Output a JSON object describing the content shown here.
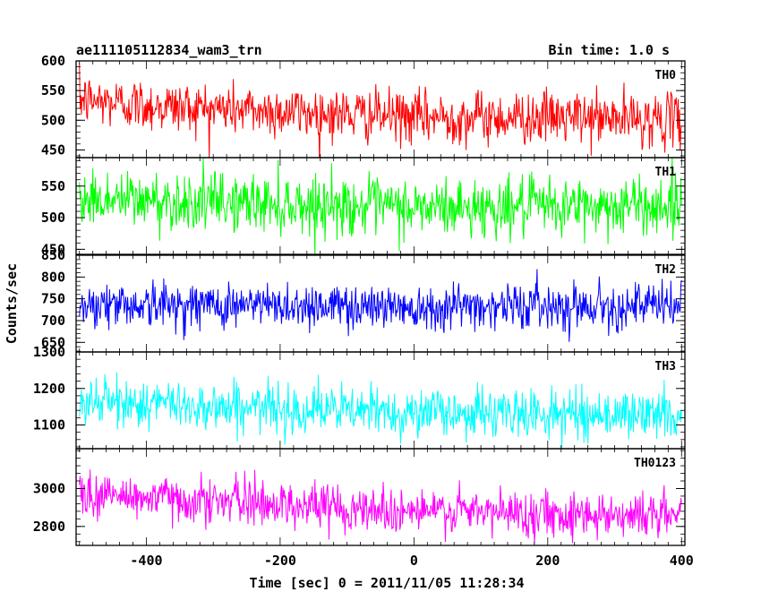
{
  "header": {
    "title": "ae111105112834_wam3_trn",
    "bin_time": "Bin time: 1.0 s"
  },
  "chart_data": {
    "type": "line",
    "title": "ae111105112834_wam3_trn",
    "bin_time_s": 1.0,
    "xlabel": "Time [sec] 0 = 2011/11/05 11:28:34",
    "ylabel": "Counts/sec",
    "xlim": [
      -505,
      405
    ],
    "x_ticks": [
      -400,
      -200,
      0,
      200,
      400
    ],
    "grid": false,
    "legend": "none",
    "panels": [
      {
        "name": "TH0",
        "color": "#ff0000",
        "ylim": [
          437,
          600
        ],
        "y_ticks": [
          450,
          500,
          550,
          600
        ],
        "trend": [
          [
            -500,
            535
          ],
          [
            -400,
            525
          ],
          [
            -200,
            515
          ],
          [
            0,
            505
          ],
          [
            200,
            505
          ],
          [
            400,
            500
          ]
        ],
        "noise_sigma": 22
      },
      {
        "name": "TH1",
        "color": "#00ff00",
        "ylim": [
          442,
          595
        ],
        "y_ticks": [
          450,
          500,
          550
        ],
        "trend": [
          [
            -500,
            530
          ],
          [
            -200,
            522
          ],
          [
            0,
            515
          ],
          [
            200,
            517
          ],
          [
            400,
            520
          ]
        ],
        "noise_sigma": 23
      },
      {
        "name": "TH2",
        "color": "#0000ff",
        "ylim": [
          628,
          850
        ],
        "y_ticks": [
          650,
          700,
          750,
          800,
          850
        ],
        "trend": [
          [
            -500,
            738
          ],
          [
            -200,
            735
          ],
          [
            0,
            733
          ],
          [
            200,
            735
          ],
          [
            400,
            733
          ]
        ],
        "noise_sigma": 26
      },
      {
        "name": "TH3",
        "color": "#00ffff",
        "ylim": [
          1035,
          1300
        ],
        "y_ticks": [
          1100,
          1200,
          1300
        ],
        "trend": [
          [
            -500,
            1165
          ],
          [
            -200,
            1145
          ],
          [
            0,
            1135
          ],
          [
            200,
            1130
          ],
          [
            400,
            1128
          ]
        ],
        "noise_sigma": 33
      },
      {
        "name": "TH0123",
        "color": "#ff00ff",
        "ylim": [
          2700,
          3210
        ],
        "y_ticks": [
          2800,
          3000
        ],
        "trend": [
          [
            -500,
            2970
          ],
          [
            -200,
            2920
          ],
          [
            0,
            2880
          ],
          [
            200,
            2870
          ],
          [
            400,
            2860
          ]
        ],
        "noise_sigma": 60
      }
    ]
  }
}
